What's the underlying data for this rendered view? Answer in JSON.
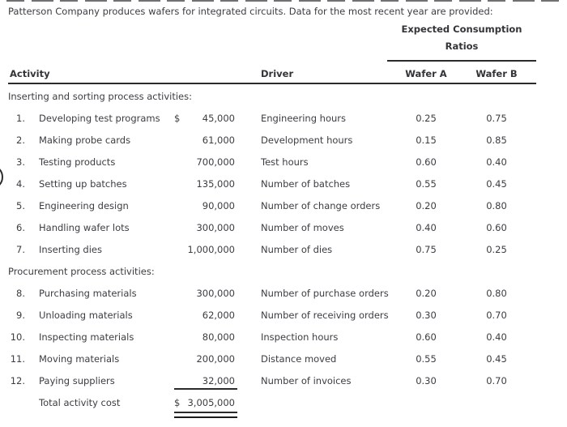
{
  "title": "Patterson Company produces wafers for integrated circuits. Data for the most recent year are provided:",
  "colors": {
    "text": "#3c3c42",
    "rule": "#2b2b2b",
    "background": "#ffffff"
  },
  "table": {
    "group_header": {
      "line1": "Expected Consumption",
      "line2": "Ratios"
    },
    "columns": {
      "activity": "Activity",
      "driver": "Driver",
      "wafer_a": "Wafer A",
      "wafer_b": "Wafer B"
    },
    "sections": [
      {
        "label": "Inserting and sorting process activities:",
        "rows": [
          {
            "num": "1.",
            "activity": "Developing test programs",
            "dollar": "$",
            "amount": "45,000",
            "driver": "Engineering hours",
            "wafer_a": "0.25",
            "wafer_b": "0.75"
          },
          {
            "num": "2.",
            "activity": "Making probe cards",
            "dollar": "",
            "amount": "61,000",
            "driver": "Development hours",
            "wafer_a": "0.15",
            "wafer_b": "0.85"
          },
          {
            "num": "3.",
            "activity": "Testing products",
            "dollar": "",
            "amount": "700,000",
            "driver": "Test hours",
            "wafer_a": "0.60",
            "wafer_b": "0.40"
          },
          {
            "num": "4.",
            "activity": "Setting up batches",
            "dollar": "",
            "amount": "135,000",
            "driver": "Number of batches",
            "wafer_a": "0.55",
            "wafer_b": "0.45"
          },
          {
            "num": "5.",
            "activity": "Engineering design",
            "dollar": "",
            "amount": "90,000",
            "driver": "Number of change orders",
            "wafer_a": "0.20",
            "wafer_b": "0.80"
          },
          {
            "num": "6.",
            "activity": "Handling wafer lots",
            "dollar": "",
            "amount": "300,000",
            "driver": "Number of moves",
            "wafer_a": "0.40",
            "wafer_b": "0.60"
          },
          {
            "num": "7.",
            "activity": "Inserting dies",
            "dollar": "",
            "amount": "1,000,000",
            "driver": "Number of dies",
            "wafer_a": "0.75",
            "wafer_b": "0.25"
          }
        ]
      },
      {
        "label": "Procurement process activities:",
        "rows": [
          {
            "num": "8.",
            "activity": "Purchasing materials",
            "dollar": "",
            "amount": "300,000",
            "driver": "Number of purchase orders",
            "wafer_a": "0.20",
            "wafer_b": "0.80"
          },
          {
            "num": "9.",
            "activity": "Unloading materials",
            "dollar": "",
            "amount": "62,000",
            "driver": "Number of receiving orders",
            "wafer_a": "0.30",
            "wafer_b": "0.70"
          },
          {
            "num": "10.",
            "activity": "Inspecting materials",
            "dollar": "",
            "amount": "80,000",
            "driver": "Inspection hours",
            "wafer_a": "0.60",
            "wafer_b": "0.40"
          },
          {
            "num": "11.",
            "activity": "Moving materials",
            "dollar": "",
            "amount": "200,000",
            "driver": "Distance moved",
            "wafer_a": "0.55",
            "wafer_b": "0.45"
          },
          {
            "num": "12.",
            "activity": "Paying suppliers",
            "dollar": "",
            "amount": "32,000",
            "driver": "Number of invoices",
            "wafer_a": "0.30",
            "wafer_b": "0.70"
          }
        ]
      }
    ],
    "total": {
      "label": "Total activity cost",
      "dollar": "$",
      "amount": "3,005,000"
    }
  }
}
